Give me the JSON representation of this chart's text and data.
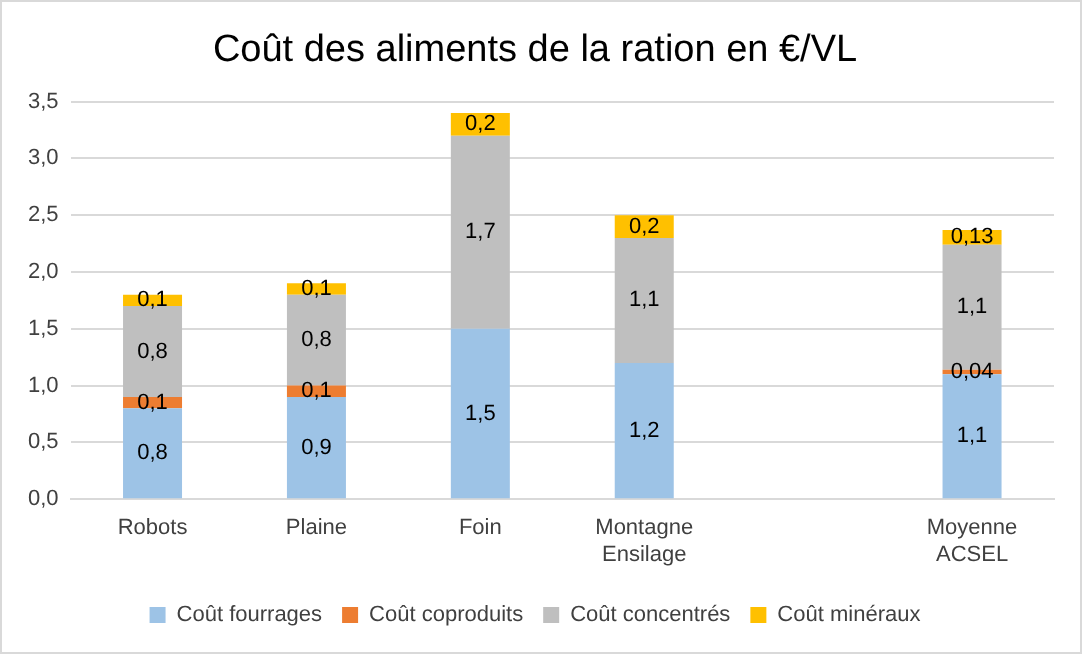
{
  "chart_data": {
    "type": "bar",
    "title": "Coût des aliments de la ration en €/VL",
    "stacked": true,
    "categories": [
      "Robots",
      "Plaine",
      "Foin",
      "Montagne Ensilage",
      null,
      "Moyenne ACSEL"
    ],
    "series": [
      {
        "name": "Coût fourrages",
        "color": "#9dc3e6",
        "values": [
          0.8,
          0.9,
          1.5,
          1.2,
          null,
          1.1
        ],
        "value_labels": [
          "0,8",
          "0,9",
          "1,5",
          "1,2",
          null,
          "1,1"
        ]
      },
      {
        "name": "Coût coproduits",
        "color": "#ed7d31",
        "values": [
          0.1,
          0.1,
          null,
          null,
          null,
          0.04
        ],
        "value_labels": [
          "0,1",
          "0,1",
          null,
          null,
          null,
          "0,04"
        ]
      },
      {
        "name": "Coût concentrés",
        "color": "#bfbfbf",
        "values": [
          0.8,
          0.8,
          1.7,
          1.1,
          null,
          1.1
        ],
        "value_labels": [
          "0,8",
          "0,8",
          "1,7",
          "1,1",
          null,
          "1,1"
        ]
      },
      {
        "name": "Coût minéraux",
        "color": "#ffc000",
        "values": [
          0.1,
          0.1,
          0.2,
          0.2,
          null,
          0.13
        ],
        "value_labels": [
          "0,1",
          "0,1",
          "0,2",
          "0,2",
          null,
          "0,13"
        ]
      }
    ],
    "ylim": [
      0,
      3.5
    ],
    "yticks": [
      {
        "value": 0,
        "label": "0,0"
      },
      {
        "value": 0.5,
        "label": "0,5"
      },
      {
        "value": 1,
        "label": "1,0"
      },
      {
        "value": 1.5,
        "label": "1,5"
      },
      {
        "value": 2,
        "label": "2,0"
      },
      {
        "value": 2.5,
        "label": "2,5"
      },
      {
        "value": 3,
        "label": "3,0"
      },
      {
        "value": 3.5,
        "label": "3,5"
      }
    ],
    "grid": "y",
    "legend": "bottom"
  }
}
